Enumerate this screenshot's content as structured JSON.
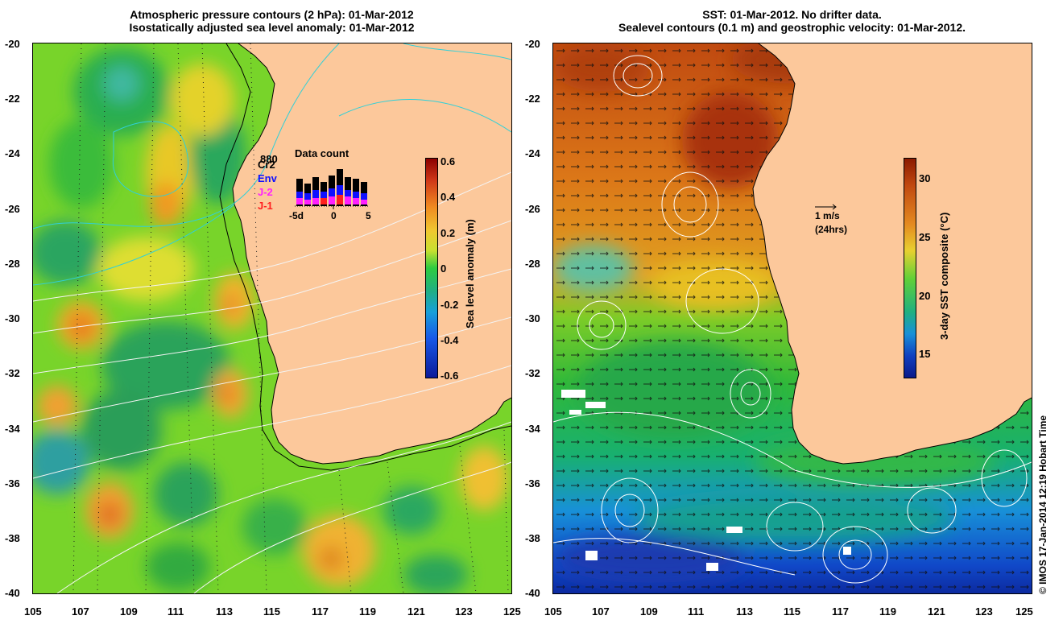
{
  "left_panel": {
    "title_line1": "Atmospheric pressure contours (2 hPa): 01-Mar-2012",
    "title_line2": "Isostatically adjusted sea level anomaly: 01-Mar-2012",
    "colorbar": {
      "label": "Sea level anomaly (m)",
      "ticks": [
        "0.6",
        "0.4",
        "0.2",
        "0",
        "-0.2",
        "-0.4",
        "-0.6"
      ]
    },
    "data_count": {
      "title": "Data count",
      "top_value": "880",
      "satellites": [
        "Cr2",
        "Env",
        "J-2",
        "J-1"
      ],
      "satellite_colors": [
        "#000000",
        "#1010ff",
        "#ff20ff",
        "#ff2020"
      ],
      "x_ticks": [
        "-5d",
        "0",
        "5"
      ]
    }
  },
  "right_panel": {
    "title_line1": "SST: 01-Mar-2012. No drifter data.",
    "title_line2": "Sealevel contours (0.1 m) and geostrophic velocity: 01-Mar-2012.",
    "colorbar": {
      "label": "3-day SST composite (°C)",
      "ticks": [
        "30",
        "25",
        "20",
        "15"
      ]
    },
    "velocity_scale": {
      "speed": "1 m/s",
      "period": "(24hrs)"
    }
  },
  "axes": {
    "lat_ticks": [
      "-20",
      "-22",
      "-24",
      "-26",
      "-28",
      "-30",
      "-32",
      "-34",
      "-36",
      "-38",
      "-40"
    ],
    "lon_ticks": [
      "105",
      "107",
      "109",
      "111",
      "113",
      "115",
      "117",
      "119",
      "121",
      "123",
      "125"
    ]
  },
  "credit": "© IMOS 17-Jan-2014 12:19 Hobart Time",
  "colors": {
    "land": "#fcc89b",
    "sla_green": "#3cbf2c",
    "sst_orange": "#e07a1c"
  }
}
